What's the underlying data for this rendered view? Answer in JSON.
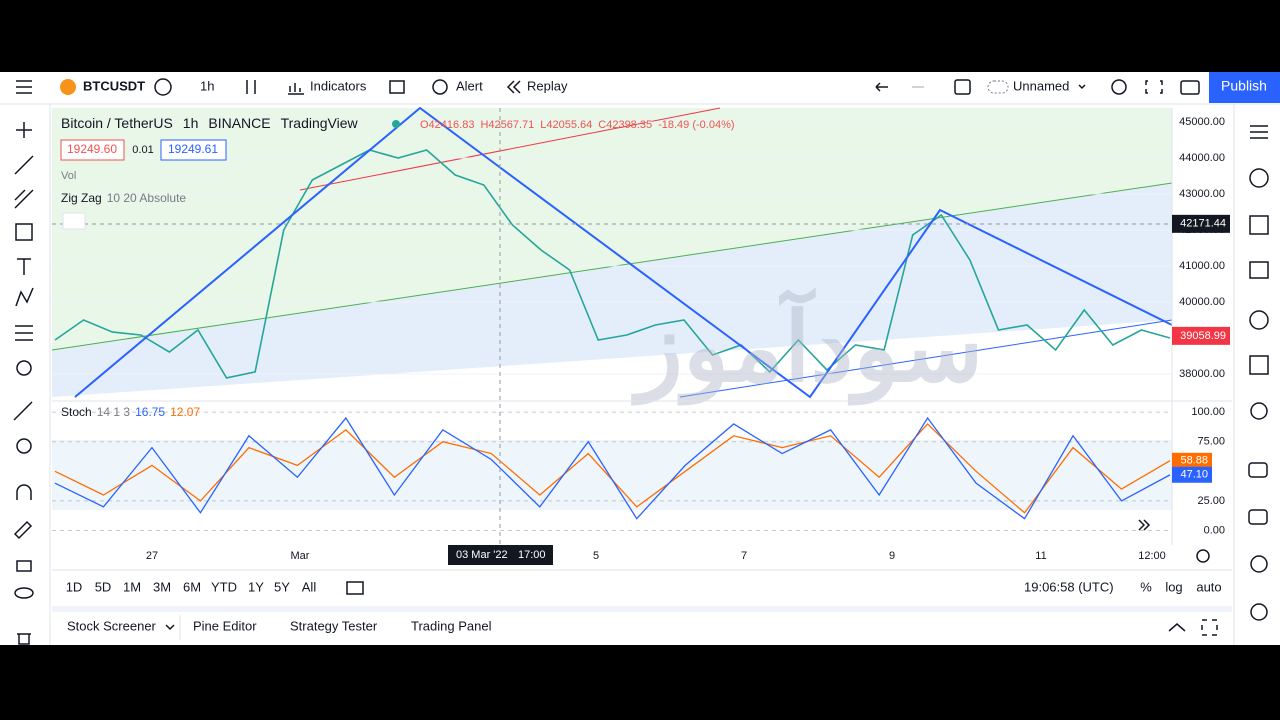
{
  "toolbar": {
    "symbol": "BTCUSDT",
    "interval": "1h",
    "items": [
      "Indicators",
      "Alert",
      "Replay"
    ],
    "layout_name": "Unnamed",
    "publish": "Publish"
  },
  "legend": {
    "title": [
      "Bitcoin / TetherUS",
      "1h",
      "BINANCE",
      "TradingView"
    ],
    "ohlc": [
      "O42416.83",
      "H42567.71",
      "L42055.64",
      "C42398.35",
      "-18.49 (-0.04%)"
    ],
    "bid": "19249.60",
    "spread": "0.01",
    "ask": "19249.61",
    "vol": "Vol",
    "indicator": "Zig Zag",
    "indicator_params": "10 20 Absolute"
  },
  "price_pane": {
    "type": "line",
    "color": "#26a69a",
    "values": [
      38944,
      39500,
      39167,
      39083,
      38611,
      39222,
      37889,
      38056,
      42000,
      43389,
      43806,
      44222,
      44000,
      44222,
      43528,
      43250,
      42139,
      41444,
      40889,
      38944,
      39083,
      39361,
      39500,
      38528,
      38806,
      38056,
      38944,
      38111,
      38806,
      38667,
      41861,
      42417,
      41167,
      39222,
      39361,
      38667,
      39778,
      38806,
      39222,
      39000
    ],
    "ylim": [
      37360,
      45390
    ],
    "yticks": [
      {
        "value": 45000,
        "label": "45000.00"
      },
      {
        "value": 44000,
        "label": "44000.00"
      },
      {
        "value": 43000,
        "label": "43000.00"
      },
      {
        "value": 42000,
        "label": "42000.00"
      },
      {
        "value": 41000,
        "label": "41000.00"
      },
      {
        "value": 40000,
        "label": "40000.00"
      },
      {
        "value": 38000,
        "label": "38000.00"
      }
    ],
    "crosshair_price": 42171.44,
    "last_price": 39058.99
  },
  "stoch_pane": {
    "name": "Stoch",
    "params": "14 1 3",
    "k_label": "16.75",
    "d_label": "12.07",
    "k_color": "#2962ff",
    "d_color": "#ff6d00",
    "k": [
      40,
      20,
      70,
      15,
      80,
      45,
      95,
      30,
      85,
      60,
      20,
      75,
      10,
      55,
      90,
      65,
      85,
      30,
      95,
      40,
      10,
      80,
      25,
      47
    ],
    "d": [
      50,
      30,
      55,
      25,
      70,
      55,
      85,
      45,
      75,
      65,
      30,
      65,
      20,
      50,
      80,
      70,
      80,
      45,
      90,
      50,
      15,
      70,
      35,
      59
    ],
    "ylim": [
      -8,
      106
    ],
    "yticks": [
      {
        "value": 100,
        "label": "100.00"
      },
      {
        "value": 75,
        "label": "75.00"
      },
      {
        "value": 25,
        "label": "25.00"
      },
      {
        "value": 0,
        "label": "0.00"
      }
    ],
    "d_last": 58.88,
    "k_last": {
      "value": 47.1,
      "label": "47.10"
    }
  },
  "time_axis": {
    "labels": [
      "27",
      "Mar",
      "5",
      "7",
      "9",
      "11",
      "12:00"
    ],
    "crosshair": [
      "03 Mar '22",
      "17:00"
    ]
  },
  "range_bar": {
    "ranges": [
      "1D",
      "5D",
      "1M",
      "3M",
      "6M",
      "YTD",
      "1Y",
      "5Y",
      "All"
    ],
    "clock": "19:06:58 (UTC)",
    "options": [
      "%",
      "log",
      "auto"
    ]
  },
  "bottom_panel": {
    "tabs": [
      "Stock Screener",
      "Pine Editor",
      "Strategy Tester",
      "Trading Panel"
    ]
  },
  "watermark": "سودآموز"
}
